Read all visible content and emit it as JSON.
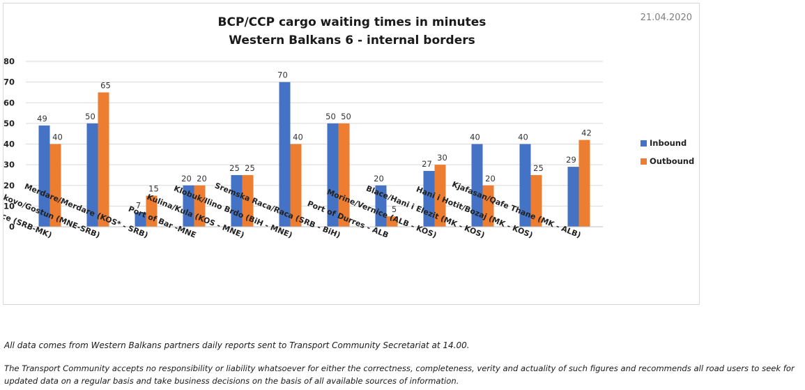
{
  "date": "21.04.2020",
  "chart_data": {
    "type": "bar",
    "title": [
      "BCP/CCP cargo waiting times in minutes",
      "Western Balkans 6 - internal borders"
    ],
    "xlabel": "",
    "ylabel": "",
    "ylim": [
      0,
      80
    ],
    "yticks": [
      0,
      10,
      20,
      30,
      40,
      50,
      60,
      70,
      80
    ],
    "grid": true,
    "legend_position": "right",
    "categories": [
      "Presevo/ Tabanovce (SRB-MK)",
      "Dobrakovo/Gostun (MNE-SRB)",
      "Merdare/Merdare (KOS* - SRB)",
      "Port of Bar -MNE",
      "Kulina/Kula (KOS - MNE)",
      "Klobuk/Ilino Brdo (BiH - MNE)",
      "Sremska Raca/Raca (SRB - BiH)",
      "Port of Durres - ALB",
      "Morine/Vernice (ALB - KOS)",
      "Blace/Hani i Elezit (MK - KOS)",
      "Hani i Hotit/Bozaj (MK - KOS)",
      "Kjafasan/Qafe Thane (MK - ALB)"
    ],
    "series": [
      {
        "name": "Inbound",
        "color": "#4472c4",
        "values": [
          49,
          50,
          7,
          20,
          25,
          70,
          50,
          20,
          27,
          40,
          40,
          29
        ]
      },
      {
        "name": "Outbound",
        "color": "#ed7d31",
        "values": [
          40,
          65,
          15,
          20,
          25,
          40,
          50,
          5,
          30,
          20,
          25,
          42
        ]
      }
    ]
  },
  "footnotes": {
    "source": "All data comes from Western Balkans partners daily reports sent to Transport Community Secretariat at 14.00.",
    "disclaimer": "The Transport Community accepts no responsibility or liability whatsoever for either the correctness, completeness, verity and actuality of such figures and recommends all road users to seek for updated data on a regular basis and take business decisions on the basis of all available sources of information."
  }
}
